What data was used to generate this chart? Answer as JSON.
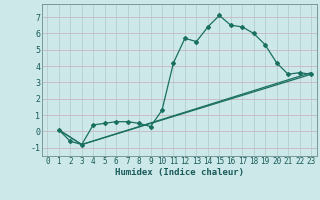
{
  "xlabel": "Humidex (Indice chaleur)",
  "bg_color": "#cce8e8",
  "grid_major_color": "#b0cccc",
  "grid_minor_color": "#daeaea",
  "line_color": "#1a7060",
  "xlim": [
    -0.5,
    23.5
  ],
  "ylim": [
    -1.5,
    7.8
  ],
  "yticks": [
    -1,
    0,
    1,
    2,
    3,
    4,
    5,
    6,
    7
  ],
  "xticks": [
    0,
    1,
    2,
    3,
    4,
    5,
    6,
    7,
    8,
    9,
    10,
    11,
    12,
    13,
    14,
    15,
    16,
    17,
    18,
    19,
    20,
    21,
    22,
    23
  ],
  "line1_x": [
    1,
    2,
    3,
    4,
    5,
    6,
    7,
    8,
    9,
    10,
    11,
    12,
    13,
    14,
    15,
    16,
    17,
    18,
    19,
    20,
    21,
    22,
    23
  ],
  "line1_y": [
    0.1,
    -0.6,
    -0.8,
    0.4,
    0.5,
    0.6,
    0.6,
    0.5,
    0.3,
    1.3,
    4.2,
    5.7,
    5.5,
    6.4,
    7.1,
    6.5,
    6.4,
    6.0,
    5.3,
    4.2,
    3.5,
    3.6,
    3.5
  ],
  "line2_x": [
    1,
    3,
    23
  ],
  "line2_y": [
    0.1,
    -0.8,
    3.5
  ],
  "line3_x": [
    1,
    3,
    23
  ],
  "line3_y": [
    0.1,
    -0.8,
    3.6
  ],
  "xlabel_fontsize": 6.5,
  "tick_fontsize": 5.5
}
